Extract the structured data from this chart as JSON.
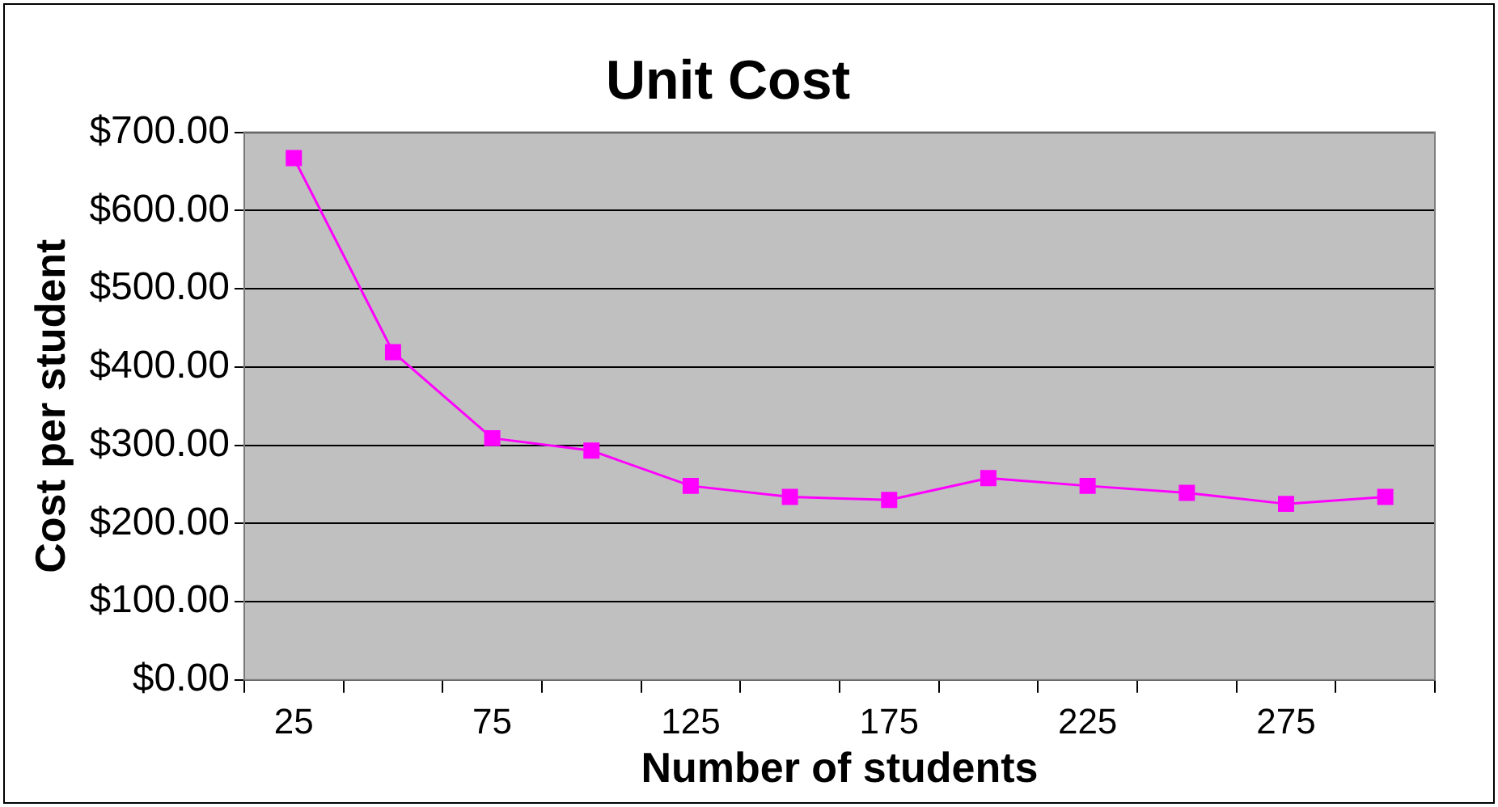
{
  "chart_data": {
    "type": "line",
    "title": "Unit Cost",
    "xlabel": "Number of students",
    "ylabel": "Cost per student",
    "categories": [
      "25",
      null,
      "75",
      null,
      "125",
      null,
      "175",
      null,
      "225",
      null,
      "275",
      null
    ],
    "series": [
      {
        "color": "#ff00ff",
        "values": [
          667,
          419,
          309,
          293,
          248,
          234,
          230,
          258,
          248,
          239,
          225,
          234
        ]
      }
    ],
    "ylim": [
      0,
      700
    ],
    "yticks": [
      {
        "value": 0,
        "label": "$0.00"
      },
      {
        "value": 100,
        "label": "$100.00"
      },
      {
        "value": 200,
        "label": "$200.00"
      },
      {
        "value": 300,
        "label": "$300.00"
      },
      {
        "value": 400,
        "label": "$400.00"
      },
      {
        "value": 500,
        "label": "$500.00"
      },
      {
        "value": 600,
        "label": "$600.00"
      },
      {
        "value": 700,
        "label": "$700.00"
      }
    ],
    "grid": "y",
    "legend": false,
    "marker": "square",
    "line_style": "solid"
  }
}
